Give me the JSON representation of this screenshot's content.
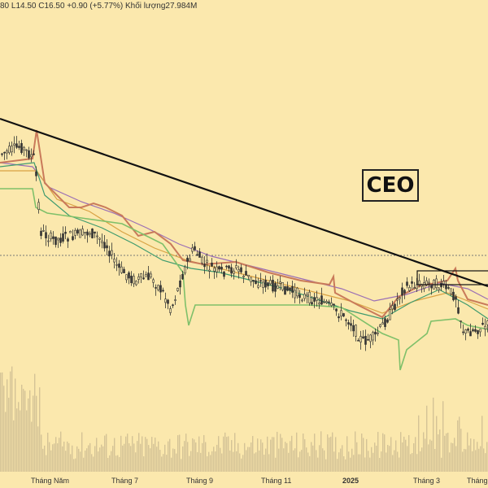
{
  "header": {
    "ohlc_text": "80  L14.50  C16.50  +0.90 (+5.77%)  Khối lượng27.984M"
  },
  "ticker_label": "CEO",
  "chart_data": {
    "type": "candlestick",
    "x_ticks": [
      "Tháng Năm",
      "Tháng 7",
      "Tháng 9",
      "Tháng 11",
      "2025",
      "Tháng 3",
      "Tháng"
    ],
    "bold_ticks": [
      "2025"
    ],
    "last": {
      "low": 14.5,
      "close": 16.5,
      "change": 0.9,
      "change_pct": 5.77,
      "volume": "27.984M"
    },
    "colors": {
      "background": "#fbe8ad",
      "trendline": "#111111",
      "candles": "#333333",
      "ma_purple": "#9b6fb5",
      "ma_red": "#c97a5a",
      "ma_orange": "#d9a243",
      "ma_green": "#3e9b6e",
      "support_green": "#7fc06a",
      "volume": "#d4c396"
    }
  }
}
